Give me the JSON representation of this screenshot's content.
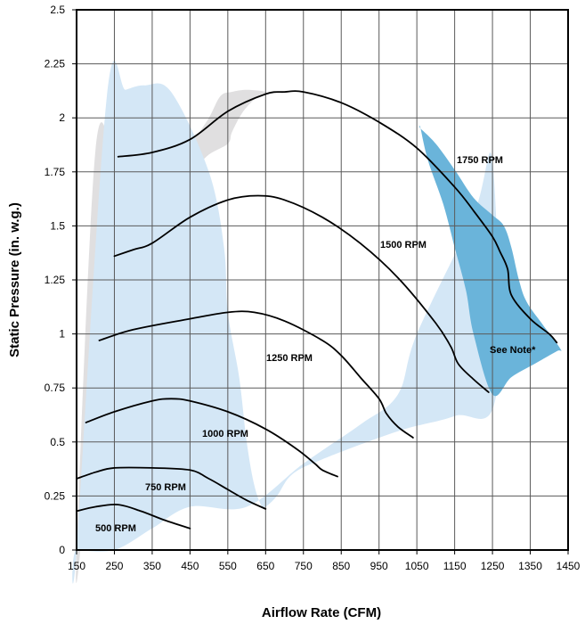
{
  "chart_data": {
    "type": "line",
    "xlabel": "Airflow Rate (CFM)",
    "ylabel": "Static Pressure (in. w.g.)",
    "xlim": [
      150,
      1450
    ],
    "ylim": [
      0,
      2.5
    ],
    "x_ticks": [
      "150",
      "250",
      "350",
      "450",
      "550",
      "650",
      "750",
      "850",
      "950",
      "1050",
      "1150",
      "1250",
      "1350",
      "1450"
    ],
    "y_ticks": [
      "0",
      "0.25",
      "0.5",
      "0.75",
      "1",
      "1.25",
      "1.5",
      "1.75",
      "2",
      "2.25",
      "2.5"
    ],
    "grid": true,
    "series": [
      {
        "name": "500 RPM",
        "x": [
          150,
          200,
          260,
          320,
          380,
          450
        ],
        "y": [
          0.18,
          0.2,
          0.21,
          0.18,
          0.14,
          0.1
        ]
      },
      {
        "name": "750 RPM",
        "x": [
          150,
          200,
          250,
          350,
          450,
          500,
          550,
          600,
          650
        ],
        "y": [
          0.33,
          0.36,
          0.38,
          0.38,
          0.37,
          0.33,
          0.28,
          0.23,
          0.19
        ]
      },
      {
        "name": "1000 RPM",
        "x": [
          175,
          250,
          350,
          400,
          450,
          550,
          650,
          730,
          780,
          800,
          840
        ],
        "y": [
          0.59,
          0.64,
          0.69,
          0.7,
          0.69,
          0.64,
          0.56,
          0.47,
          0.4,
          0.37,
          0.34
        ]
      },
      {
        "name": "1250 RPM",
        "x": [
          210,
          300,
          450,
          550,
          620,
          700,
          800,
          850,
          900,
          950,
          970,
          1000,
          1040
        ],
        "y": [
          0.97,
          1.02,
          1.07,
          1.1,
          1.1,
          1.06,
          0.97,
          0.9,
          0.8,
          0.7,
          0.63,
          0.57,
          0.52
        ]
      },
      {
        "name": "1500 RPM",
        "x": [
          250,
          300,
          350,
          450,
          550,
          630,
          700,
          800,
          900,
          1000,
          1100,
          1140,
          1160,
          1200,
          1240
        ],
        "y": [
          1.36,
          1.39,
          1.42,
          1.54,
          1.62,
          1.64,
          1.62,
          1.54,
          1.42,
          1.26,
          1.05,
          0.94,
          0.86,
          0.79,
          0.73
        ]
      },
      {
        "name": "1750 RPM",
        "x": [
          260,
          350,
          450,
          550,
          650,
          700,
          750,
          850,
          950,
          1050,
          1150,
          1200,
          1250,
          1270,
          1290,
          1300,
          1350,
          1400,
          1420
        ],
        "y": [
          1.82,
          1.84,
          1.9,
          2.03,
          2.11,
          2.12,
          2.12,
          2.07,
          1.98,
          1.86,
          1.68,
          1.57,
          1.45,
          1.38,
          1.3,
          1.18,
          1.07,
          1.0,
          0.96
        ]
      }
    ],
    "annotations": [
      "See Note*"
    ],
    "regions": [
      {
        "name": "left gray region",
        "color": "#e0dfe0",
        "x": [
          160,
          170,
          210,
          260,
          300,
          360,
          450,
          500,
          550,
          560,
          580,
          600,
          630,
          650,
          600,
          560,
          530,
          500,
          460,
          420,
          350,
          300,
          250,
          200,
          150
        ],
        "y": [
          0,
          0.4,
          1.0,
          1.35,
          1.5,
          1.68,
          1.75,
          1.83,
          1.88,
          1.93,
          2.0,
          2.05,
          2.1,
          2.12,
          2.13,
          2.12,
          2.1,
          2.0,
          1.9,
          1.83,
          1.8,
          1.78,
          1.82,
          1.85,
          0
        ]
      },
      {
        "name": "light blue region",
        "color": "#d4e7f6",
        "x": [
          150,
          250,
          350,
          450,
          600,
          750,
          900,
          1000,
          1050,
          1200,
          1250,
          1260,
          1150,
          1000,
          800,
          720,
          680,
          650,
          640,
          620,
          600,
          580,
          550,
          540,
          500,
          400,
          330,
          280,
          230,
          150
        ],
        "y": [
          0,
          0,
          0.1,
          0.2,
          0.2,
          0.4,
          0.58,
          0.72,
          1.0,
          1.55,
          1.8,
          0.72,
          0.62,
          0.55,
          0.42,
          0.35,
          0.25,
          0.2,
          0.2,
          0.3,
          0.5,
          0.8,
          1.1,
          1.4,
          1.75,
          2.12,
          2.15,
          2.13,
          2.1,
          0
        ]
      },
      {
        "name": "dark blue region",
        "color": "#6ab4da",
        "x": [
          1060,
          1100,
          1150,
          1200,
          1250,
          1280,
          1300,
          1320,
          1340,
          1380,
          1430,
          1420,
          1360,
          1300,
          1250,
          1200,
          1180,
          1150,
          1120,
          1080,
          1060
        ],
        "y": [
          1.95,
          1.88,
          1.76,
          1.63,
          1.55,
          1.5,
          1.4,
          1.25,
          1.15,
          1.05,
          0.93,
          0.92,
          0.86,
          0.8,
          0.72,
          1.0,
          1.2,
          1.4,
          1.6,
          1.8,
          1.95
        ]
      }
    ]
  }
}
